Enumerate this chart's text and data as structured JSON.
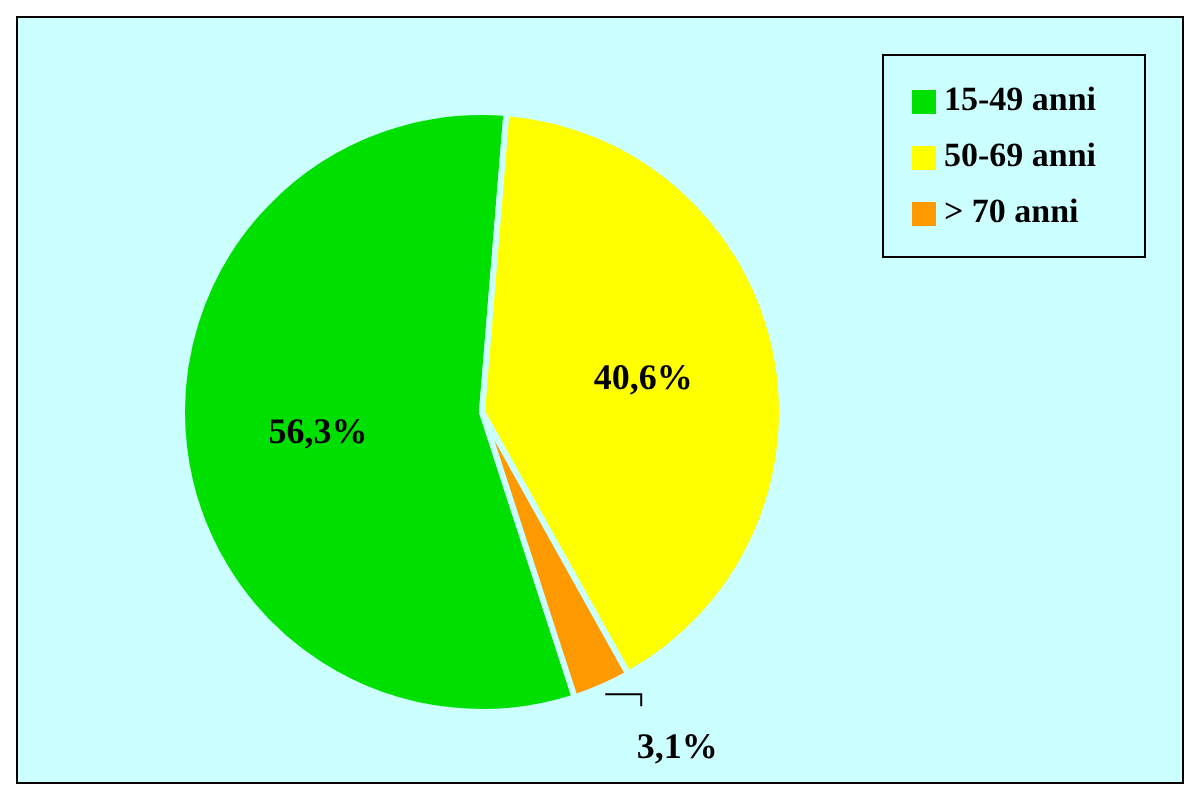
{
  "chart_data": {
    "type": "pie",
    "categories": [
      "15-49 anni",
      "50-69 anni",
      "> 70 anni"
    ],
    "values": [
      56.3,
      40.6,
      3.1
    ],
    "colors": [
      "#00e000",
      "#ffff00",
      "#ff9900"
    ],
    "value_labels": [
      "56,3%",
      "40,6%",
      "3,1%"
    ],
    "legend": "top right"
  }
}
